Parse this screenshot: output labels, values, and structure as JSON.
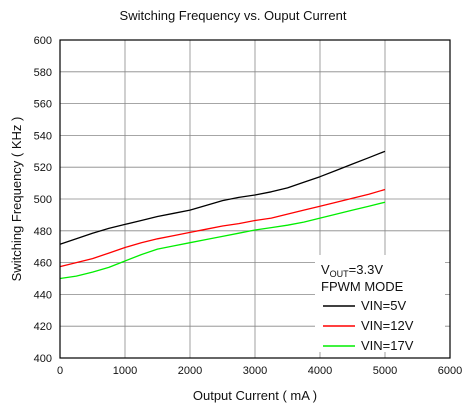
{
  "chart_data": {
    "type": "line",
    "title": "Switching Frequency vs. Ouput Current",
    "xlabel": "Output Current ( mA )",
    "ylabel": "Switching Frequency ( KHz )",
    "xlim": [
      0,
      6000
    ],
    "ylim": [
      400,
      600
    ],
    "x_ticks": [
      0,
      1000,
      2000,
      3000,
      4000,
      5000,
      6000
    ],
    "y_ticks": [
      400,
      420,
      440,
      460,
      480,
      500,
      520,
      540,
      560,
      580,
      600
    ],
    "grid": true,
    "legend_placement": "bottom-right",
    "annotation": {
      "vout_prefix": "V",
      "vout_sub": "OUT",
      "vout_value": "=3.3V",
      "mode": "FPWM MODE"
    },
    "series": [
      {
        "name": "VIN=5V",
        "color": "#000000",
        "x": [
          0,
          250,
          500,
          750,
          1000,
          1250,
          1500,
          1750,
          2000,
          2250,
          2500,
          2750,
          3000,
          3250,
          3500,
          3750,
          4000,
          4250,
          4500,
          4750,
          5000
        ],
        "y": [
          471.5,
          475,
          478.5,
          481.5,
          484,
          486.5,
          489,
          491,
          493,
          496,
          499,
          501,
          502.5,
          504.5,
          507,
          510.5,
          514,
          518,
          522,
          526,
          530
        ]
      },
      {
        "name": "VIN=12V",
        "color": "#ff0000",
        "x": [
          0,
          250,
          500,
          750,
          1000,
          1250,
          1500,
          1750,
          2000,
          2250,
          2500,
          2750,
          3000,
          3250,
          3500,
          3750,
          4000,
          4250,
          4500,
          4750,
          5000
        ],
        "y": [
          457.5,
          460,
          462.5,
          466,
          469.5,
          472.5,
          475,
          477,
          479,
          481,
          483,
          484.5,
          486.5,
          488,
          490.5,
          493,
          495.5,
          498,
          500.5,
          503,
          506
        ]
      },
      {
        "name": "VIN=17V",
        "color": "#00ee00",
        "x": [
          0,
          250,
          500,
          750,
          1000,
          1250,
          1500,
          1750,
          2000,
          2250,
          2500,
          2750,
          3000,
          3250,
          3500,
          3750,
          4000,
          4250,
          4500,
          4750,
          5000
        ],
        "y": [
          450,
          451.5,
          454,
          457,
          461,
          465,
          468.5,
          470.5,
          472.5,
          474.5,
          476.5,
          478.5,
          480.5,
          482,
          483.5,
          485.5,
          488,
          490.5,
          493,
          495.5,
          498
        ]
      }
    ]
  }
}
